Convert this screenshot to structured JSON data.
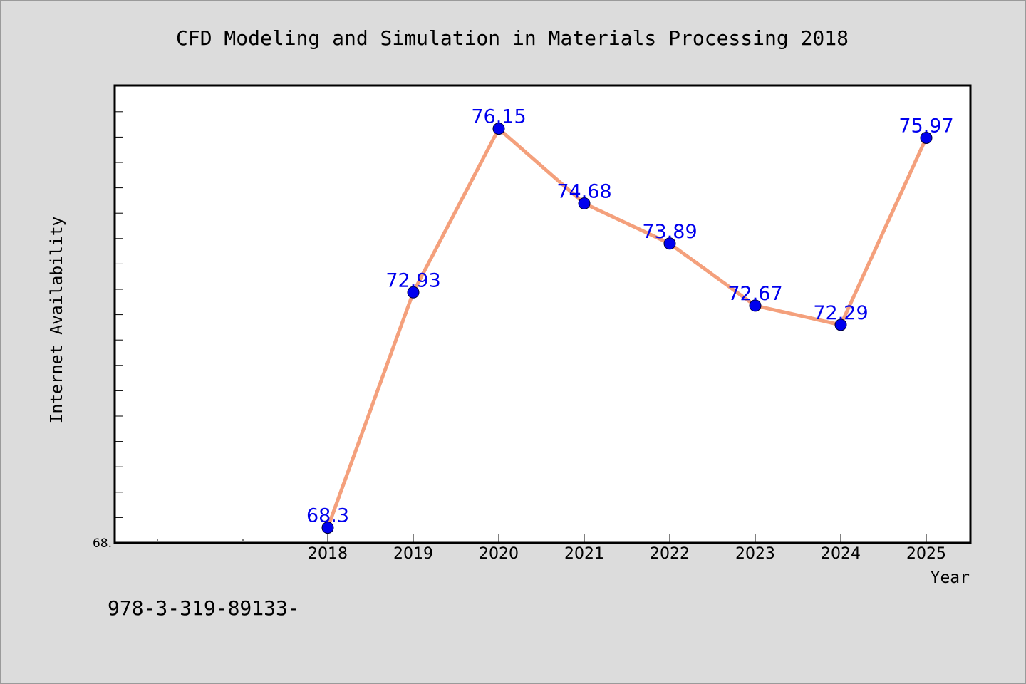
{
  "chart_data": {
    "type": "line",
    "title": "CFD Modeling and Simulation in Materials Processing 2018",
    "xlabel": "Year",
    "ylabel": "Internet Availability",
    "categories": [
      "2018",
      "2019",
      "2020",
      "2021",
      "2022",
      "2023",
      "2024",
      "2025"
    ],
    "series": [
      {
        "values": [
          68.3,
          72.93,
          76.15,
          74.68,
          73.89,
          72.67,
          72.29,
          75.97
        ],
        "data_labels": [
          "68.3",
          "72.93",
          "76.15",
          "74.68",
          "73.89",
          "72.67",
          "72.29",
          "75.97"
        ],
        "line_color": "#f4a07c",
        "marker_color": "#0000ee"
      }
    ],
    "y_tick_labels": [
      "68."
    ],
    "ylim": [
      68.0,
      77.0
    ],
    "grid": false,
    "legend": "none"
  },
  "footer": {
    "text": "978-3-319-89133-"
  }
}
